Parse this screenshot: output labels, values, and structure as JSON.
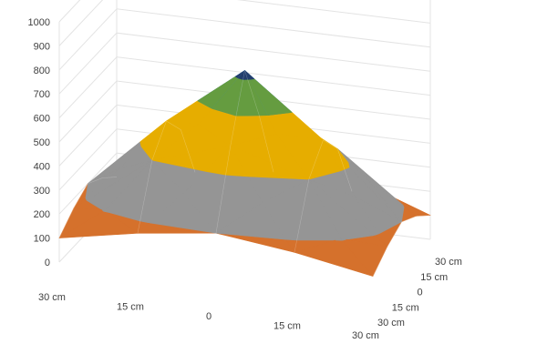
{
  "chart_data": {
    "type": "surface",
    "x_categories": [
      "30 cm",
      "15 cm",
      "0",
      "15 cm",
      "30 cm"
    ],
    "y_categories": [
      "30 cm",
      "15 cm",
      "0",
      "15 cm",
      "30 cm"
    ],
    "z_ticks": [
      "0",
      "100",
      "200",
      "300",
      "400",
      "500",
      "600",
      "700",
      "800",
      "900",
      "1000"
    ],
    "zlim": [
      0,
      1000
    ],
    "z": [
      [
        100,
        160,
        200,
        160,
        100
      ],
      [
        160,
        400,
        500,
        400,
        160
      ],
      [
        200,
        500,
        750,
        500,
        200
      ],
      [
        160,
        400,
        500,
        400,
        160
      ],
      [
        100,
        160,
        200,
        160,
        100
      ]
    ],
    "bands": [
      {
        "range": [
          0,
          200
        ],
        "color": "#ED7D31"
      },
      {
        "range": [
          200,
          400
        ],
        "color": "#A5A5A5"
      },
      {
        "range": [
          400,
          600
        ],
        "color": "#FFC000"
      },
      {
        "range": [
          600,
          800
        ],
        "color": "#5B9BD5"
      },
      {
        "range": [
          800,
          1000
        ],
        "color": "#70AD47"
      }
    ],
    "peak_color": "#264478",
    "gridlines": true,
    "legend": "none"
  }
}
